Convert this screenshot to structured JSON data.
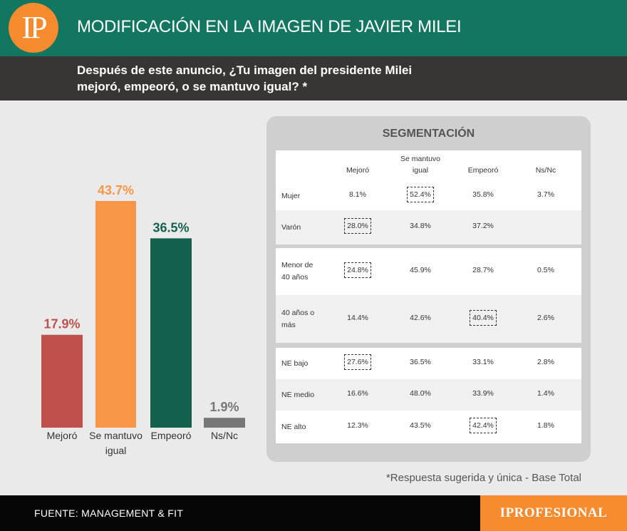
{
  "header": {
    "logo": "IP",
    "title": "MODIFICACIÓN EN LA IMAGEN DE JAVIER MILEI",
    "question_line1": "Después de este anuncio, ¿Tu imagen del presidente Milei",
    "question_line2": "mejoró, empeoró, o se mantuvo igual? *"
  },
  "chart_data": {
    "type": "bar",
    "categories": [
      "Mejoró",
      "Se mantuvo igual",
      "Empeoró",
      "Ns/Nc"
    ],
    "values": [
      17.9,
      43.7,
      36.5,
      1.9
    ],
    "value_labels": [
      "17.9%",
      "43.7%",
      "36.5%",
      "1.9%"
    ],
    "colors": [
      "#c0504d",
      "#f79646",
      "#14604f",
      "#777777"
    ],
    "label_colors": [
      "#c0504d",
      "#f79646",
      "#14604f",
      "#777777"
    ],
    "title": "",
    "xlabel": "",
    "ylabel": "",
    "ylim": [
      0,
      50
    ]
  },
  "segmentation": {
    "title": "SEGMENTACIÓN",
    "columns": [
      "Mejoró",
      "Se mantuvo igual",
      "Empeoró",
      "Ns/Nc"
    ],
    "column_lines": [
      [
        "Mejoró"
      ],
      [
        "Se mantuvo",
        "igual"
      ],
      [
        "Empeoró"
      ],
      [
        "Ns/Nc"
      ]
    ],
    "groups": [
      {
        "rows": [
          {
            "label": [
              "Mujer"
            ],
            "values": [
              "8.1%",
              "52.4%",
              "35.8%",
              "3.7%"
            ],
            "highlight": 1
          },
          {
            "label": [
              "Varón"
            ],
            "values": [
              "28.0%",
              "34.8%",
              "37.2%",
              ""
            ],
            "highlight": 0
          }
        ]
      },
      {
        "rows": [
          {
            "label": [
              "Menor de",
              "40 años"
            ],
            "values": [
              "24.8%",
              "45.9%",
              "28.7%",
              "0.5%"
            ],
            "highlight": 0
          },
          {
            "label": [
              "40 años o",
              "más"
            ],
            "values": [
              "14.4%",
              "42.6%",
              "40.4%",
              "2.6%"
            ],
            "highlight": 2
          }
        ]
      },
      {
        "rows": [
          {
            "label": [
              "NE bajo"
            ],
            "values": [
              "27.6%",
              "36.5%",
              "33.1%",
              "2.8%"
            ],
            "highlight": 0
          },
          {
            "label": [
              "NE medio"
            ],
            "values": [
              "16.6%",
              "48.0%",
              "33.9%",
              "1.4%"
            ],
            "highlight": -1
          },
          {
            "label": [
              "NE alto"
            ],
            "values": [
              "12.3%",
              "43.5%",
              "42.4%",
              "1.8%"
            ],
            "highlight": 2
          }
        ]
      }
    ]
  },
  "footnote": "*Respuesta sugerida y única - Base Total",
  "footer": {
    "source": "FUENTE: MANAGEMENT & FIT",
    "brand": "IPROFESIONAL"
  }
}
